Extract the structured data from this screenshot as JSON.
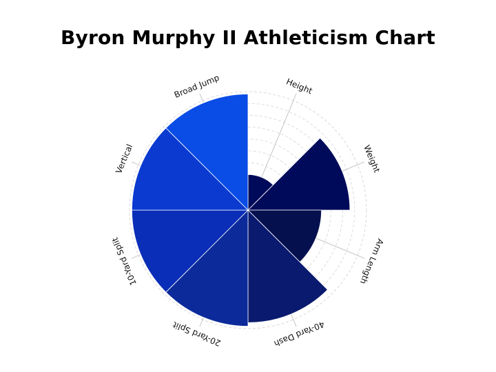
{
  "chart_data": {
    "type": "polar-area",
    "title": "Byron Murphy II Athleticism Chart",
    "categories": [
      "Height",
      "Weight",
      "Arm Length",
      "40-Yard Dash",
      "20-Yard Split",
      "10-Yard Split",
      "Vertical",
      "Broad Jump"
    ],
    "values": [
      30,
      86,
      62,
      95,
      98,
      98,
      98,
      98
    ],
    "rlim": [
      0,
      100
    ],
    "colors": [
      "#000a5a",
      "#000a5a",
      "#05104f",
      "#0a1a6e",
      "#0c2a9a",
      "#0b2eb8",
      "#0a3ad0",
      "#0a4ce6"
    ],
    "grid": true
  }
}
